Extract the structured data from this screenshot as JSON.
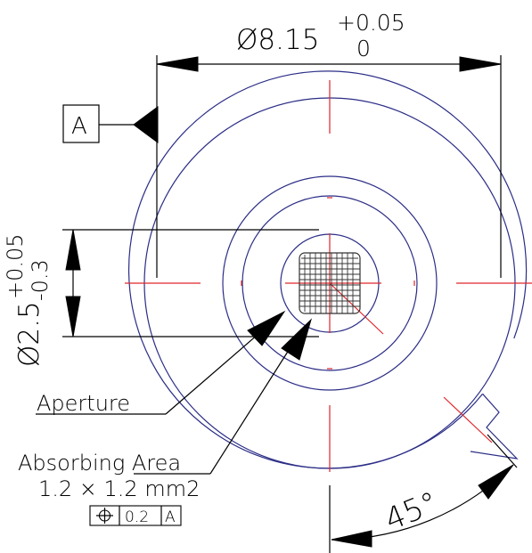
{
  "dimensions": {
    "outer_diameter": {
      "symbol": "Ø",
      "value": "8.15",
      "tol_upper": "+0.05",
      "tol_lower": "0"
    },
    "aperture_diameter": {
      "symbol": "Ø",
      "value": "2.5",
      "tol_upper": "+0.05",
      "tol_lower": "-0.3"
    },
    "angle": "45°"
  },
  "datum": {
    "label": "A"
  },
  "callouts": {
    "aperture": "Aperture",
    "absorbing_area": "Absorbing Area",
    "absorbing_size": "1.2 × 1.2 mm2"
  },
  "feature_control_frame": {
    "symbol": "⌖",
    "tolerance": "0.2",
    "datum": "A"
  }
}
